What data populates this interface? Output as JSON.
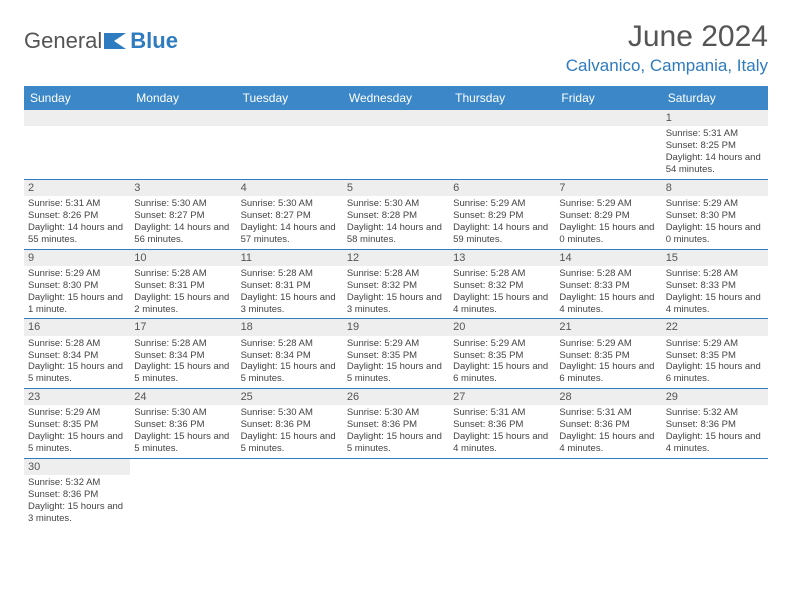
{
  "logo": {
    "general": "General",
    "blue": "Blue"
  },
  "title": "June 2024",
  "location": "Calvanico, Campania, Italy",
  "colors": {
    "header_bg": "#3b87c8",
    "accent": "#2f7bbf",
    "daynum_bg": "#eeeeee",
    "text": "#444444"
  },
  "weekdays": [
    "Sunday",
    "Monday",
    "Tuesday",
    "Wednesday",
    "Thursday",
    "Friday",
    "Saturday"
  ],
  "weeks": [
    [
      null,
      null,
      null,
      null,
      null,
      null,
      {
        "n": "1",
        "sr": "Sunrise: 5:31 AM",
        "ss": "Sunset: 8:25 PM",
        "dl": "Daylight: 14 hours and 54 minutes."
      }
    ],
    [
      {
        "n": "2",
        "sr": "Sunrise: 5:31 AM",
        "ss": "Sunset: 8:26 PM",
        "dl": "Daylight: 14 hours and 55 minutes."
      },
      {
        "n": "3",
        "sr": "Sunrise: 5:30 AM",
        "ss": "Sunset: 8:27 PM",
        "dl": "Daylight: 14 hours and 56 minutes."
      },
      {
        "n": "4",
        "sr": "Sunrise: 5:30 AM",
        "ss": "Sunset: 8:27 PM",
        "dl": "Daylight: 14 hours and 57 minutes."
      },
      {
        "n": "5",
        "sr": "Sunrise: 5:30 AM",
        "ss": "Sunset: 8:28 PM",
        "dl": "Daylight: 14 hours and 58 minutes."
      },
      {
        "n": "6",
        "sr": "Sunrise: 5:29 AM",
        "ss": "Sunset: 8:29 PM",
        "dl": "Daylight: 14 hours and 59 minutes."
      },
      {
        "n": "7",
        "sr": "Sunrise: 5:29 AM",
        "ss": "Sunset: 8:29 PM",
        "dl": "Daylight: 15 hours and 0 minutes."
      },
      {
        "n": "8",
        "sr": "Sunrise: 5:29 AM",
        "ss": "Sunset: 8:30 PM",
        "dl": "Daylight: 15 hours and 0 minutes."
      }
    ],
    [
      {
        "n": "9",
        "sr": "Sunrise: 5:29 AM",
        "ss": "Sunset: 8:30 PM",
        "dl": "Daylight: 15 hours and 1 minute."
      },
      {
        "n": "10",
        "sr": "Sunrise: 5:28 AM",
        "ss": "Sunset: 8:31 PM",
        "dl": "Daylight: 15 hours and 2 minutes."
      },
      {
        "n": "11",
        "sr": "Sunrise: 5:28 AM",
        "ss": "Sunset: 8:31 PM",
        "dl": "Daylight: 15 hours and 3 minutes."
      },
      {
        "n": "12",
        "sr": "Sunrise: 5:28 AM",
        "ss": "Sunset: 8:32 PM",
        "dl": "Daylight: 15 hours and 3 minutes."
      },
      {
        "n": "13",
        "sr": "Sunrise: 5:28 AM",
        "ss": "Sunset: 8:32 PM",
        "dl": "Daylight: 15 hours and 4 minutes."
      },
      {
        "n": "14",
        "sr": "Sunrise: 5:28 AM",
        "ss": "Sunset: 8:33 PM",
        "dl": "Daylight: 15 hours and 4 minutes."
      },
      {
        "n": "15",
        "sr": "Sunrise: 5:28 AM",
        "ss": "Sunset: 8:33 PM",
        "dl": "Daylight: 15 hours and 4 minutes."
      }
    ],
    [
      {
        "n": "16",
        "sr": "Sunrise: 5:28 AM",
        "ss": "Sunset: 8:34 PM",
        "dl": "Daylight: 15 hours and 5 minutes."
      },
      {
        "n": "17",
        "sr": "Sunrise: 5:28 AM",
        "ss": "Sunset: 8:34 PM",
        "dl": "Daylight: 15 hours and 5 minutes."
      },
      {
        "n": "18",
        "sr": "Sunrise: 5:28 AM",
        "ss": "Sunset: 8:34 PM",
        "dl": "Daylight: 15 hours and 5 minutes."
      },
      {
        "n": "19",
        "sr": "Sunrise: 5:29 AM",
        "ss": "Sunset: 8:35 PM",
        "dl": "Daylight: 15 hours and 5 minutes."
      },
      {
        "n": "20",
        "sr": "Sunrise: 5:29 AM",
        "ss": "Sunset: 8:35 PM",
        "dl": "Daylight: 15 hours and 6 minutes."
      },
      {
        "n": "21",
        "sr": "Sunrise: 5:29 AM",
        "ss": "Sunset: 8:35 PM",
        "dl": "Daylight: 15 hours and 6 minutes."
      },
      {
        "n": "22",
        "sr": "Sunrise: 5:29 AM",
        "ss": "Sunset: 8:35 PM",
        "dl": "Daylight: 15 hours and 6 minutes."
      }
    ],
    [
      {
        "n": "23",
        "sr": "Sunrise: 5:29 AM",
        "ss": "Sunset: 8:35 PM",
        "dl": "Daylight: 15 hours and 5 minutes."
      },
      {
        "n": "24",
        "sr": "Sunrise: 5:30 AM",
        "ss": "Sunset: 8:36 PM",
        "dl": "Daylight: 15 hours and 5 minutes."
      },
      {
        "n": "25",
        "sr": "Sunrise: 5:30 AM",
        "ss": "Sunset: 8:36 PM",
        "dl": "Daylight: 15 hours and 5 minutes."
      },
      {
        "n": "26",
        "sr": "Sunrise: 5:30 AM",
        "ss": "Sunset: 8:36 PM",
        "dl": "Daylight: 15 hours and 5 minutes."
      },
      {
        "n": "27",
        "sr": "Sunrise: 5:31 AM",
        "ss": "Sunset: 8:36 PM",
        "dl": "Daylight: 15 hours and 4 minutes."
      },
      {
        "n": "28",
        "sr": "Sunrise: 5:31 AM",
        "ss": "Sunset: 8:36 PM",
        "dl": "Daylight: 15 hours and 4 minutes."
      },
      {
        "n": "29",
        "sr": "Sunrise: 5:32 AM",
        "ss": "Sunset: 8:36 PM",
        "dl": "Daylight: 15 hours and 4 minutes."
      }
    ],
    [
      {
        "n": "30",
        "sr": "Sunrise: 5:32 AM",
        "ss": "Sunset: 8:36 PM",
        "dl": "Daylight: 15 hours and 3 minutes."
      },
      null,
      null,
      null,
      null,
      null,
      null
    ]
  ]
}
